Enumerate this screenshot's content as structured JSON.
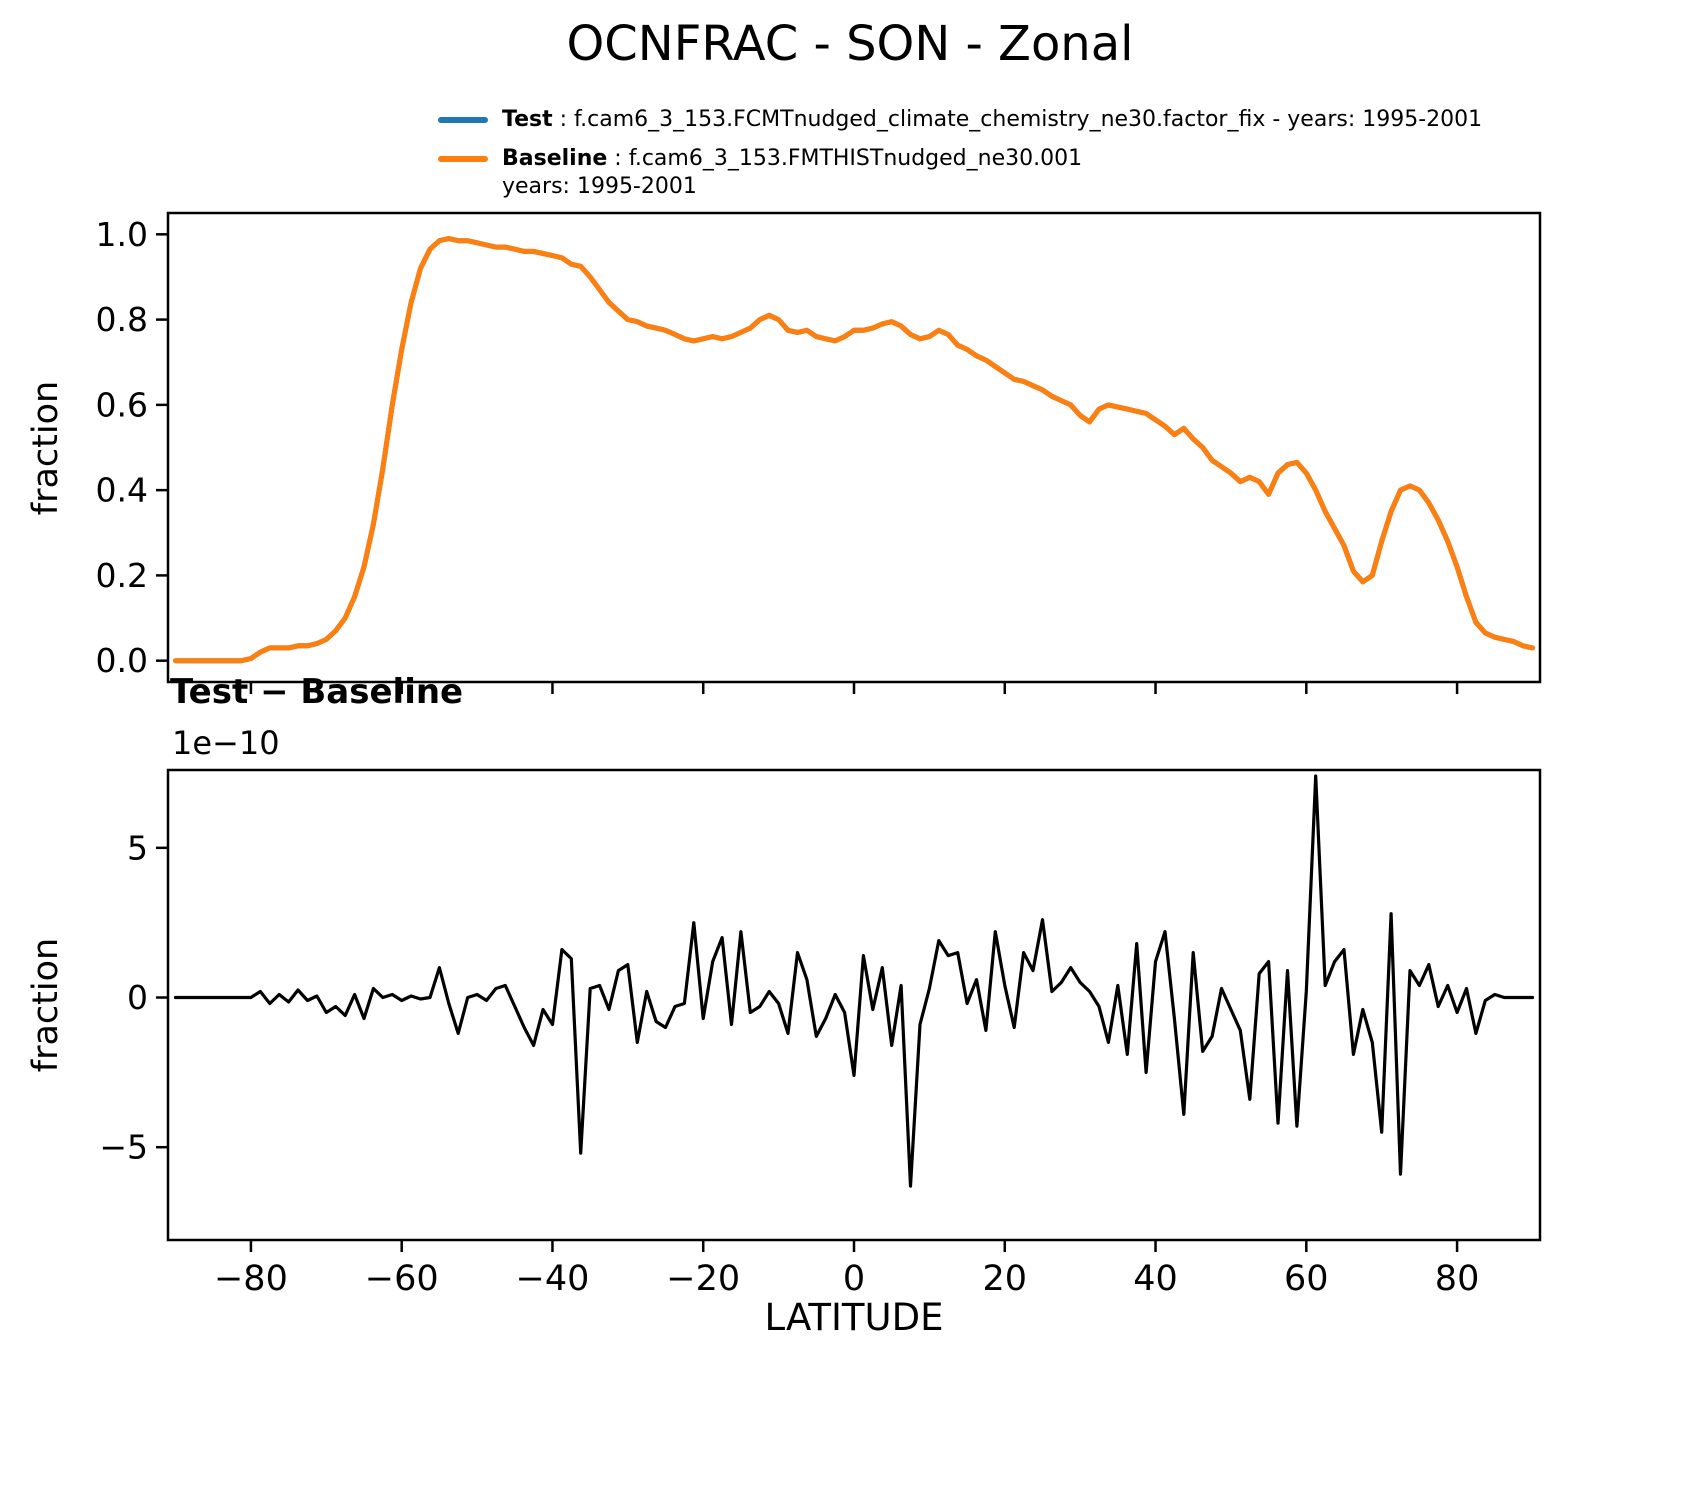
{
  "title": "OCNFRAC - SON - Zonal",
  "legend": {
    "test_label": "Test",
    "test_text": " : f.cam6_3_153.FCMTnudged_climate_chemistry_ne30.factor_fix - years: 1995-2001",
    "baseline_label": "Baseline",
    "baseline_text": " : f.cam6_3_153.FMTHISTnudged_ne30.001",
    "baseline_years": "years: 1995-2001"
  },
  "colors": {
    "test": "#1f77b4",
    "baseline": "#ff7f0e",
    "diff": "#000000",
    "axes": "#000000"
  },
  "chart_data": {
    "type": "line",
    "xlabel": "LATITUDE",
    "xlim": [
      -91,
      91
    ],
    "xticks": {
      "values": [
        -80,
        -60,
        -40,
        -20,
        0,
        20,
        40,
        60,
        80
      ],
      "labels": [
        "−80",
        "−60",
        "−40",
        "−20",
        "0",
        "20",
        "40",
        "60",
        "80"
      ]
    },
    "x": [
      -90,
      -88.75,
      -87.5,
      -86.25,
      -85,
      -83.75,
      -82.5,
      -81.25,
      -80,
      -78.75,
      -77.5,
      -76.25,
      -75,
      -73.75,
      -72.5,
      -71.25,
      -70,
      -68.75,
      -67.5,
      -66.25,
      -65,
      -63.75,
      -62.5,
      -61.25,
      -60,
      -58.75,
      -57.5,
      -56.25,
      -55,
      -53.75,
      -52.5,
      -51.25,
      -50,
      -48.75,
      -47.5,
      -46.25,
      -45,
      -43.75,
      -42.5,
      -41.25,
      -40,
      -38.75,
      -37.5,
      -36.25,
      -35,
      -33.75,
      -32.5,
      -31.25,
      -30,
      -28.75,
      -27.5,
      -26.25,
      -25,
      -23.75,
      -22.5,
      -21.25,
      -20,
      -18.75,
      -17.5,
      -16.25,
      -15,
      -13.75,
      -12.5,
      -11.25,
      -10,
      -8.75,
      -7.5,
      -6.25,
      -5,
      -3.75,
      -2.5,
      -1.25,
      0,
      1.25,
      2.5,
      3.75,
      5,
      6.25,
      7.5,
      8.75,
      10,
      11.25,
      12.5,
      13.75,
      15,
      16.25,
      17.5,
      18.75,
      20,
      21.25,
      22.5,
      23.75,
      25,
      26.25,
      27.5,
      28.75,
      30,
      31.25,
      32.5,
      33.75,
      35,
      36.25,
      37.5,
      38.75,
      40,
      41.25,
      42.5,
      43.75,
      45,
      46.25,
      47.5,
      48.75,
      50,
      51.25,
      52.5,
      53.75,
      55,
      56.25,
      57.5,
      58.75,
      60,
      61.25,
      62.5,
      63.75,
      65,
      66.25,
      67.5,
      68.75,
      70,
      71.25,
      72.5,
      73.75,
      75,
      76.25,
      77.5,
      78.75,
      80,
      81.25,
      82.5,
      83.75,
      85,
      86.25,
      87.5,
      88.75,
      90
    ],
    "panels": [
      {
        "title": "",
        "ylabel": "fraction",
        "ylim": [
          -0.05,
          1.05
        ],
        "yticks": {
          "values": [
            0,
            0.2,
            0.4,
            0.6,
            0.8,
            1.0
          ],
          "labels": [
            "0.0",
            "0.2",
            "0.4",
            "0.6",
            "0.8",
            "1.0"
          ]
        },
        "series": [
          {
            "name": "Test",
            "color": "#1f77b4",
            "same_as": "Baseline",
            "note": "visually identical to Baseline (difference ~1e-10)"
          },
          {
            "name": "Baseline",
            "color": "#ff7f0e",
            "values": [
              0,
              0,
              0,
              0,
              0,
              0,
              0,
              0,
              0.005,
              0.02,
              0.03,
              0.03,
              0.03,
              0.035,
              0.035,
              0.04,
              0.05,
              0.07,
              0.1,
              0.15,
              0.22,
              0.32,
              0.45,
              0.6,
              0.73,
              0.84,
              0.92,
              0.965,
              0.985,
              0.99,
              0.985,
              0.985,
              0.98,
              0.975,
              0.97,
              0.97,
              0.965,
              0.96,
              0.96,
              0.955,
              0.95,
              0.945,
              0.93,
              0.925,
              0.9,
              0.87,
              0.84,
              0.82,
              0.8,
              0.795,
              0.785,
              0.78,
              0.775,
              0.765,
              0.755,
              0.75,
              0.755,
              0.76,
              0.755,
              0.76,
              0.77,
              0.78,
              0.8,
              0.81,
              0.8,
              0.775,
              0.77,
              0.775,
              0.76,
              0.755,
              0.75,
              0.76,
              0.775,
              0.775,
              0.78,
              0.79,
              0.795,
              0.785,
              0.765,
              0.755,
              0.76,
              0.775,
              0.765,
              0.74,
              0.73,
              0.715,
              0.705,
              0.69,
              0.675,
              0.66,
              0.655,
              0.645,
              0.635,
              0.62,
              0.61,
              0.6,
              0.575,
              0.56,
              0.59,
              0.6,
              0.595,
              0.59,
              0.585,
              0.58,
              0.565,
              0.55,
              0.53,
              0.545,
              0.52,
              0.5,
              0.47,
              0.455,
              0.44,
              0.42,
              0.43,
              0.42,
              0.39,
              0.44,
              0.46,
              0.465,
              0.44,
              0.4,
              0.35,
              0.31,
              0.27,
              0.21,
              0.185,
              0.2,
              0.28,
              0.35,
              0.4,
              0.41,
              0.4,
              0.37,
              0.33,
              0.28,
              0.22,
              0.15,
              0.09,
              0.065,
              0.055,
              0.05,
              0.045,
              0.035,
              0.03
            ]
          }
        ]
      },
      {
        "title": "Test − Baseline",
        "ylabel": "fraction",
        "offset_text": "1e−10",
        "units": "values in units of 1e-10",
        "ylim": [
          -8.1,
          7.6
        ],
        "yticks": {
          "values": [
            -5,
            0,
            5
          ],
          "labels": [
            "−5",
            "0",
            "5"
          ]
        },
        "series": [
          {
            "name": "Test - Baseline",
            "color": "#000000",
            "values": [
              0,
              0,
              0,
              0,
              0,
              0,
              0,
              0,
              0,
              0.2,
              -0.2,
              0.1,
              -0.15,
              0.25,
              -0.1,
              0.05,
              -0.5,
              -0.3,
              -0.6,
              0.1,
              -0.7,
              0.3,
              0,
              0.1,
              -0.1,
              0.05,
              -0.05,
              0,
              1.0,
              -0.2,
              -1.2,
              0,
              0.1,
              -0.1,
              0.3,
              0.4,
              -0.3,
              -1.0,
              -1.6,
              -0.4,
              -0.9,
              1.6,
              1.3,
              -5.2,
              0.3,
              0.4,
              -0.4,
              0.9,
              1.1,
              -1.5,
              0.2,
              -0.8,
              -1.0,
              -0.3,
              -0.2,
              2.5,
              -0.7,
              1.2,
              2.0,
              -0.9,
              2.2,
              -0.5,
              -0.3,
              0.2,
              -0.2,
              -1.2,
              1.5,
              0.6,
              -1.3,
              -0.7,
              0.1,
              -0.5,
              -2.6,
              1.4,
              -0.4,
              1.0,
              -1.6,
              0.4,
              -6.3,
              -0.9,
              0.3,
              1.9,
              1.4,
              1.5,
              -0.2,
              0.6,
              -1.1,
              2.2,
              0.4,
              -1.0,
              1.5,
              0.9,
              2.6,
              0.2,
              0.5,
              1.0,
              0.5,
              0.2,
              -0.3,
              -1.5,
              0.4,
              -1.9,
              1.8,
              -2.5,
              1.2,
              2.2,
              -0.7,
              -3.9,
              1.5,
              -1.8,
              -1.3,
              0.3,
              -0.4,
              -1.1,
              -3.4,
              0.8,
              1.2,
              -4.2,
              0.9,
              -4.3,
              0.2,
              7.4,
              0.4,
              1.2,
              1.6,
              -1.9,
              -0.4,
              -1.5,
              -4.5,
              2.8,
              -5.9,
              0.9,
              0.4,
              1.1,
              -0.3,
              0.4,
              -0.5,
              0.3,
              -1.2,
              -0.1,
              0.1,
              0,
              0,
              0,
              0
            ]
          }
        ]
      }
    ]
  }
}
